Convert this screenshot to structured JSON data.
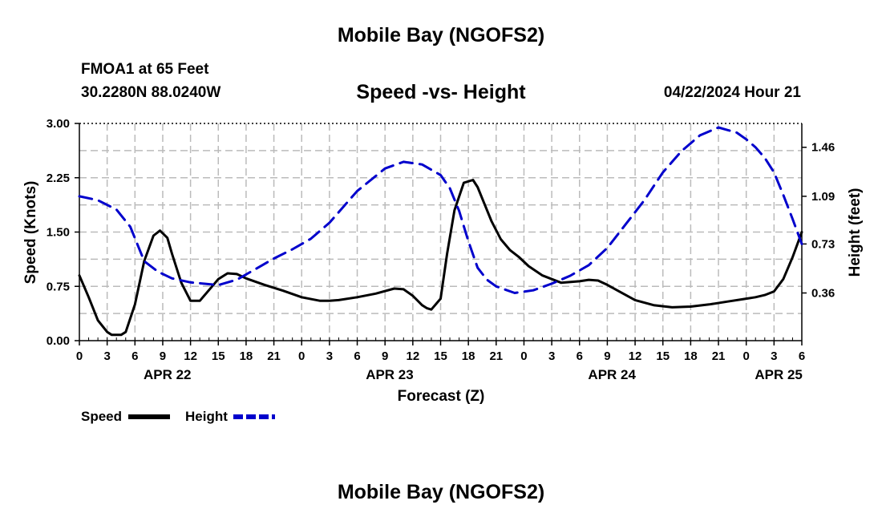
{
  "header": {
    "title": "Mobile Bay (NGOFS2)",
    "station": "FMOA1 at 65 Feet",
    "coords": "30.2280N  88.0240W",
    "subtitle": "Speed -vs- Height",
    "datetime": "04/22/2024 Hour 21",
    "footer_title": "Mobile Bay (NGOFS2)"
  },
  "colors": {
    "speed": "#000000",
    "height": "#0000cc",
    "grid": "#bbbbbb"
  },
  "chart_data": {
    "type": "line",
    "title": "Speed -vs- Height",
    "xlabel": "Forecast (Z)",
    "ylabel": "Speed (Knots)",
    "y2label": "Height (feet)",
    "x_range_hours": [
      0,
      78
    ],
    "ylim": [
      0,
      3.0
    ],
    "y2lim": [
      0,
      1.64
    ],
    "x_ticks": [
      "0",
      "3",
      "6",
      "9",
      "12",
      "15",
      "18",
      "21",
      "0",
      "3",
      "6",
      "9",
      "12",
      "15",
      "18",
      "21",
      "0",
      "3",
      "6",
      "9",
      "12",
      "15",
      "18",
      "21",
      "0",
      "3",
      "6"
    ],
    "x_tick_hours": [
      0,
      3,
      6,
      9,
      12,
      15,
      18,
      21,
      24,
      27,
      30,
      33,
      36,
      39,
      42,
      45,
      48,
      51,
      54,
      57,
      60,
      63,
      66,
      69,
      72,
      75,
      78
    ],
    "date_labels": [
      {
        "label": "APR 22",
        "hour": 9.5
      },
      {
        "label": "APR 23",
        "hour": 33.5
      },
      {
        "label": "APR 24",
        "hour": 57.5
      },
      {
        "label": "APR 25",
        "hour": 75.5
      }
    ],
    "y_ticks": [
      "0.00",
      "0.75",
      "1.50",
      "2.25",
      "3.00"
    ],
    "y_tick_values": [
      0,
      0.75,
      1.5,
      2.25,
      3.0
    ],
    "y2_ticks": [
      "0.36",
      "0.73",
      "1.09",
      "1.46"
    ],
    "y2_tick_values": [
      0.36,
      0.73,
      1.09,
      1.46
    ],
    "series": [
      {
        "name": "Speed",
        "axis": "left",
        "style": "solid",
        "x": [
          0,
          1,
          2,
          3,
          3.5,
          4.5,
          5,
          6,
          7,
          8,
          8.7,
          9.5,
          10,
          11,
          12,
          13,
          14,
          15,
          16,
          17,
          18,
          20,
          22,
          24,
          26,
          27,
          28,
          30,
          32,
          34,
          35,
          36,
          37,
          37.5,
          38,
          39,
          39.7,
          40.5,
          41.5,
          42.5,
          43,
          43.7,
          44.5,
          45.5,
          46.5,
          47.5,
          48.5,
          50,
          52,
          54,
          55,
          56,
          57,
          58,
          60,
          62,
          64,
          66,
          68,
          70,
          72,
          73,
          74,
          75,
          76,
          77,
          78
        ],
        "values": [
          0.9,
          0.6,
          0.28,
          0.12,
          0.08,
          0.08,
          0.12,
          0.5,
          1.1,
          1.45,
          1.52,
          1.42,
          1.2,
          0.8,
          0.55,
          0.55,
          0.7,
          0.85,
          0.93,
          0.92,
          0.86,
          0.77,
          0.69,
          0.6,
          0.55,
          0.55,
          0.56,
          0.6,
          0.65,
          0.72,
          0.71,
          0.62,
          0.49,
          0.45,
          0.43,
          0.58,
          1.2,
          1.8,
          2.18,
          2.22,
          2.12,
          1.9,
          1.65,
          1.4,
          1.25,
          1.15,
          1.03,
          0.9,
          0.8,
          0.82,
          0.84,
          0.83,
          0.77,
          0.7,
          0.56,
          0.49,
          0.46,
          0.47,
          0.5,
          0.54,
          0.58,
          0.6,
          0.63,
          0.68,
          0.85,
          1.15,
          1.5
        ]
      },
      {
        "name": "Height",
        "axis": "right",
        "style": "dashed",
        "x": [
          0,
          2,
          4,
          5.5,
          7,
          8.5,
          10,
          12,
          15,
          17,
          19,
          21,
          23,
          25,
          27,
          30,
          33,
          35,
          37,
          38,
          39,
          40,
          41,
          42,
          43,
          44,
          45,
          47,
          49,
          51,
          53,
          55,
          57,
          59,
          61,
          63,
          65,
          67,
          69,
          70,
          71,
          72,
          73,
          74,
          75,
          76,
          77,
          78
        ],
        "values": [
          1.09,
          1.06,
          0.99,
          0.86,
          0.6,
          0.52,
          0.47,
          0.44,
          0.42,
          0.46,
          0.54,
          0.62,
          0.69,
          0.77,
          0.89,
          1.13,
          1.3,
          1.35,
          1.33,
          1.29,
          1.25,
          1.15,
          0.98,
          0.75,
          0.55,
          0.46,
          0.41,
          0.36,
          0.38,
          0.43,
          0.49,
          0.57,
          0.7,
          0.88,
          1.06,
          1.27,
          1.43,
          1.55,
          1.61,
          1.59,
          1.57,
          1.52,
          1.46,
          1.38,
          1.27,
          1.1,
          0.92,
          0.73
        ]
      }
    ],
    "legend": [
      {
        "label": "Speed",
        "color": "#000000",
        "style": "solid"
      },
      {
        "label": "Height",
        "color": "#0000cc",
        "style": "dashed"
      }
    ],
    "legend_position": "bottom-left"
  }
}
